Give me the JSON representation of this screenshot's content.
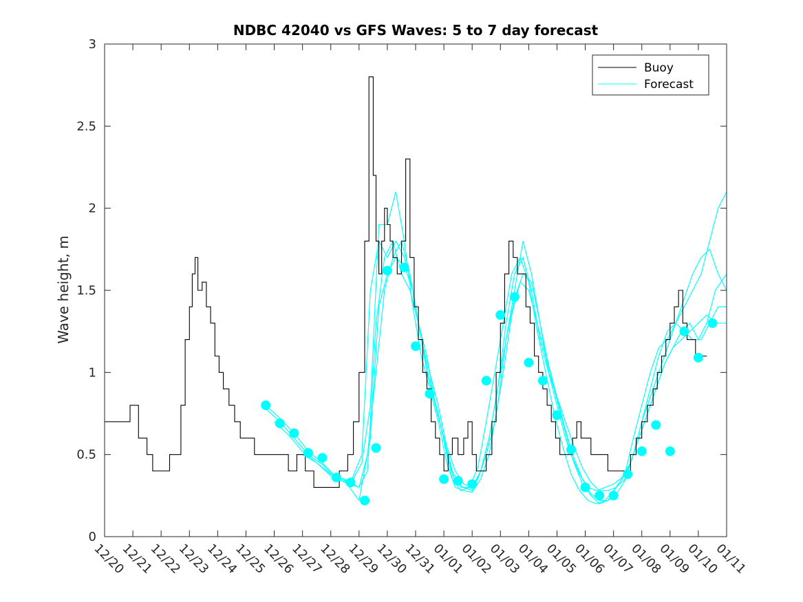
{
  "chart_data": {
    "type": "line",
    "title": "NDBC 42040 vs GFS Waves: 5 to 7 day forecast",
    "xlabel": "",
    "ylabel": "Wave height, m",
    "xlim": [
      0,
      22
    ],
    "ylim": [
      0,
      3
    ],
    "yticks": [
      0,
      0.5,
      1,
      1.5,
      2,
      2.5,
      3
    ],
    "ytick_labels": [
      "0",
      "0.5",
      "1",
      "1.5",
      "2",
      "2.5",
      "3"
    ],
    "xtick_labels": [
      "12/20",
      "12/21",
      "12/22",
      "12/23",
      "12/24",
      "12/25",
      "12/26",
      "12/27",
      "12/28",
      "12/29",
      "12/30",
      "12/31",
      "01/01",
      "01/02",
      "01/03",
      "01/04",
      "01/05",
      "01/06",
      "01/07",
      "01/08",
      "01/09",
      "01/10",
      "01/11"
    ],
    "legend": {
      "position": "top-right",
      "entries": [
        "Buoy",
        "Forecast"
      ]
    },
    "colors": {
      "buoy": "#000000",
      "forecast": "#00ffff",
      "axis": "#262626"
    },
    "buoy": {
      "name": "Buoy",
      "x": [
        0,
        0.3,
        0.6,
        0.9,
        1.2,
        1.5,
        1.7,
        1.9,
        2.1,
        2.3,
        2.5,
        2.7,
        2.85,
        3.0,
        3.1,
        3.2,
        3.3,
        3.45,
        3.6,
        3.75,
        3.9,
        4.05,
        4.2,
        4.4,
        4.6,
        4.8,
        5.0,
        5.3,
        5.6,
        5.9,
        6.2,
        6.5,
        6.8,
        7.1,
        7.4,
        7.7,
        8.0,
        8.3,
        8.6,
        8.8,
        9.0,
        9.2,
        9.35,
        9.5,
        9.6,
        9.7,
        9.8,
        9.9,
        10.0,
        10.1,
        10.2,
        10.35,
        10.5,
        10.65,
        10.8,
        10.95,
        11.1,
        11.25,
        11.4,
        11.55,
        11.7,
        11.85,
        12.0,
        12.15,
        12.3,
        12.5,
        12.7,
        12.85,
        13.0,
        13.15,
        13.3,
        13.5,
        13.7,
        13.85,
        14.0,
        14.15,
        14.3,
        14.45,
        14.6,
        14.75,
        14.9,
        15.05,
        15.2,
        15.35,
        15.5,
        15.65,
        15.8,
        15.95,
        16.1,
        16.25,
        16.4,
        16.55,
        16.7,
        16.85,
        17.0,
        17.2,
        17.4,
        17.6,
        17.8,
        18.0,
        18.2,
        18.4,
        18.6,
        18.8,
        19.0,
        19.2,
        19.4,
        19.55,
        19.7,
        19.85,
        20.0,
        20.15,
        20.3,
        20.45,
        20.6,
        20.75,
        20.9,
        21.05,
        21.2,
        21.3
      ],
      "y": [
        0.7,
        0.7,
        0.7,
        0.8,
        0.6,
        0.5,
        0.4,
        0.4,
        0.4,
        0.5,
        0.5,
        0.8,
        1.2,
        1.4,
        1.6,
        1.7,
        1.5,
        1.55,
        1.4,
        1.3,
        1.1,
        1.0,
        0.9,
        0.8,
        0.7,
        0.6,
        0.6,
        0.5,
        0.5,
        0.5,
        0.5,
        0.4,
        0.5,
        0.4,
        0.3,
        0.3,
        0.3,
        0.4,
        0.5,
        0.7,
        1.0,
        1.8,
        2.8,
        2.2,
        1.8,
        1.6,
        1.8,
        2.0,
        1.9,
        1.8,
        1.7,
        1.6,
        1.8,
        2.3,
        1.7,
        1.4,
        1.2,
        1.0,
        0.9,
        0.7,
        0.6,
        0.5,
        0.4,
        0.5,
        0.6,
        0.5,
        0.6,
        0.7,
        0.5,
        0.4,
        0.4,
        0.5,
        0.7,
        1.0,
        1.3,
        1.6,
        1.8,
        1.7,
        1.6,
        1.6,
        1.4,
        1.3,
        1.1,
        1.0,
        0.9,
        0.8,
        0.7,
        0.6,
        0.5,
        0.5,
        0.5,
        0.6,
        0.7,
        0.6,
        0.6,
        0.5,
        0.5,
        0.5,
        0.4,
        0.4,
        0.4,
        0.4,
        0.5,
        0.6,
        0.7,
        0.8,
        0.9,
        1.0,
        1.1,
        1.2,
        1.3,
        1.4,
        1.5,
        1.3,
        1.2,
        1.2,
        1.1,
        1.1,
        1.1,
        1.1
      ]
    },
    "forecast": {
      "name": "Forecast",
      "series": [
        {
          "x": [
            5.7,
            6.2,
            6.7,
            7.2,
            7.7,
            8.2,
            8.7,
            9.1,
            9.4,
            9.7,
            10.0,
            10.3,
            10.6,
            10.9,
            11.2,
            11.5,
            11.8,
            12.1,
            12.4,
            12.7,
            13.0,
            13.3,
            13.6,
            13.9,
            14.2,
            14.5,
            14.8,
            15.1,
            15.4,
            15.7,
            16.0,
            16.3,
            16.6,
            16.9,
            17.2,
            17.5,
            17.8,
            18.1,
            18.4,
            18.7,
            19.0,
            19.3,
            19.6,
            19.9,
            20.2,
            20.5,
            20.8,
            21.1,
            21.4,
            21.7,
            22.0
          ],
          "y": [
            0.8,
            0.72,
            0.63,
            0.52,
            0.45,
            0.36,
            0.33,
            0.5,
            1.5,
            1.8,
            1.7,
            1.8,
            1.7,
            1.5,
            1.2,
            1.0,
            0.8,
            0.55,
            0.4,
            0.32,
            0.3,
            0.4,
            0.6,
            0.9,
            1.3,
            1.6,
            1.7,
            1.5,
            1.2,
            1.0,
            0.85,
            0.7,
            0.55,
            0.42,
            0.33,
            0.28,
            0.28,
            0.3,
            0.35,
            0.5,
            0.7,
            0.9,
            1.1,
            1.25,
            1.3,
            1.25,
            1.2,
            1.2,
            1.3,
            1.4,
            1.4
          ]
        },
        {
          "x": [
            5.7,
            6.2,
            6.7,
            7.2,
            7.7,
            8.2,
            8.7,
            9.1,
            9.4,
            9.7,
            10.0,
            10.3,
            10.6,
            10.9,
            11.2,
            11.5,
            11.8,
            12.1,
            12.4,
            12.7,
            13.0,
            13.3,
            13.6,
            13.9,
            14.2,
            14.5,
            14.8,
            15.1,
            15.4,
            15.7,
            16.0,
            16.3,
            16.6,
            16.9,
            17.2,
            17.5,
            17.8,
            18.1,
            18.4,
            18.7,
            19.0,
            19.3,
            19.6,
            19.9,
            20.2,
            20.5,
            20.8,
            21.1,
            21.4,
            21.7,
            22.0
          ],
          "y": [
            0.78,
            0.7,
            0.6,
            0.5,
            0.44,
            0.35,
            0.32,
            0.45,
            0.8,
            1.9,
            1.9,
            2.1,
            1.8,
            1.4,
            1.1,
            0.9,
            0.7,
            0.45,
            0.3,
            0.28,
            0.27,
            0.35,
            0.5,
            0.8,
            1.2,
            1.5,
            1.8,
            1.6,
            1.3,
            1.0,
            0.8,
            0.6,
            0.45,
            0.32,
            0.25,
            0.2,
            0.22,
            0.3,
            0.38,
            0.6,
            0.8,
            1.0,
            1.15,
            1.2,
            1.3,
            1.4,
            1.5,
            1.6,
            1.8,
            2.0,
            2.1
          ]
        },
        {
          "x": [
            6.0,
            6.5,
            7.0,
            7.5,
            8.0,
            8.5,
            9.0,
            9.3,
            9.6,
            9.9,
            10.2,
            10.5,
            10.8,
            11.1,
            11.4,
            11.7,
            12.0,
            12.3,
            12.6,
            12.9,
            13.2,
            13.5,
            13.8,
            14.1,
            14.4,
            14.7,
            15.0,
            15.3,
            15.6,
            15.9,
            16.2,
            16.5,
            16.8,
            17.1,
            17.4,
            17.7,
            18.0,
            18.3,
            18.6,
            18.9,
            19.2,
            19.5,
            19.8,
            20.1,
            20.4,
            20.7,
            21.0,
            21.3,
            21.6,
            22.0
          ],
          "y": [
            0.7,
            0.62,
            0.52,
            0.45,
            0.37,
            0.33,
            0.3,
            0.4,
            1.3,
            1.7,
            1.8,
            1.6,
            1.5,
            1.3,
            1.1,
            0.8,
            0.6,
            0.4,
            0.3,
            0.3,
            0.35,
            0.5,
            0.7,
            1.0,
            1.35,
            1.55,
            1.5,
            1.3,
            1.1,
            0.9,
            0.7,
            0.5,
            0.38,
            0.3,
            0.28,
            0.3,
            0.32,
            0.36,
            0.45,
            0.6,
            0.75,
            0.9,
            1.05,
            1.15,
            1.25,
            1.3,
            1.2,
            1.3,
            1.5,
            1.6
          ]
        },
        {
          "x": [
            7.0,
            7.5,
            8.0,
            8.5,
            9.0,
            9.4,
            9.7,
            10.0,
            10.3,
            10.6,
            10.9,
            11.2,
            11.5,
            11.8,
            12.1,
            12.4,
            12.7,
            13.0,
            13.3,
            13.6,
            13.9,
            14.2,
            14.5,
            14.8,
            15.1,
            15.4,
            15.7,
            16.0,
            16.3,
            16.6,
            16.9,
            17.2,
            17.5,
            17.8,
            18.1,
            18.4,
            18.7,
            19.0,
            19.3,
            19.6,
            19.9,
            20.2,
            20.5,
            20.8,
            21.1,
            21.4,
            21.7,
            22.0
          ],
          "y": [
            0.5,
            0.45,
            0.38,
            0.34,
            0.22,
            0.6,
            1.4,
            1.6,
            1.7,
            1.65,
            1.5,
            1.2,
            0.95,
            0.75,
            0.5,
            0.33,
            0.3,
            0.28,
            0.4,
            0.6,
            0.9,
            1.2,
            1.45,
            1.6,
            1.55,
            1.3,
            1.05,
            0.85,
            0.65,
            0.48,
            0.35,
            0.26,
            0.22,
            0.22,
            0.26,
            0.34,
            0.5,
            0.7,
            0.85,
            1.0,
            1.15,
            1.3,
            1.45,
            1.6,
            1.7,
            1.75,
            1.6,
            1.5
          ]
        },
        {
          "x": [
            8.0,
            8.5,
            9.0,
            9.3,
            9.6,
            9.9,
            10.2,
            10.5,
            10.8,
            11.1,
            11.4,
            11.7,
            12.0,
            12.3,
            12.6,
            12.9,
            13.2,
            13.5,
            13.8,
            14.1,
            14.4,
            14.7,
            15.0,
            15.3,
            15.6,
            15.9,
            16.2,
            16.5,
            16.8,
            17.1,
            17.4,
            17.7,
            18.0,
            18.3,
            18.6,
            18.9,
            19.2,
            19.5,
            19.8,
            20.1,
            20.4,
            20.7,
            21.0,
            21.3,
            21.6,
            22.0
          ],
          "y": [
            0.38,
            0.35,
            0.3,
            0.5,
            1.0,
            1.5,
            1.7,
            1.8,
            1.6,
            1.3,
            1.0,
            0.8,
            0.6,
            0.35,
            0.28,
            0.3,
            0.42,
            0.7,
            1.0,
            1.3,
            1.6,
            1.7,
            1.55,
            1.25,
            1.0,
            0.75,
            0.55,
            0.38,
            0.28,
            0.22,
            0.2,
            0.22,
            0.28,
            0.35,
            0.45,
            0.6,
            0.75,
            0.9,
            1.05,
            1.15,
            1.2,
            1.25,
            1.3,
            1.35,
            1.3,
            1.3
          ]
        }
      ],
      "markers": {
        "x": [
          5.7,
          6.2,
          6.7,
          7.2,
          7.7,
          8.2,
          8.7,
          9.2,
          9.6,
          10.0,
          10.6,
          11.0,
          11.5,
          12.0,
          12.5,
          13.0,
          13.5,
          14.0,
          14.5,
          15.0,
          15.5,
          16.0,
          16.5,
          17.0,
          17.5,
          18.0,
          18.5,
          19.0,
          19.5,
          20.0,
          20.5,
          21.0,
          21.5
        ],
        "y": [
          0.8,
          0.69,
          0.63,
          0.51,
          0.48,
          0.36,
          0.33,
          0.22,
          0.54,
          1.62,
          1.64,
          1.16,
          0.87,
          0.35,
          0.34,
          0.32,
          0.95,
          1.35,
          1.46,
          1.06,
          0.95,
          0.74,
          0.53,
          0.3,
          0.25,
          0.25,
          0.38,
          0.52,
          0.68,
          0.52,
          1.25,
          1.09,
          1.3
        ]
      }
    }
  }
}
